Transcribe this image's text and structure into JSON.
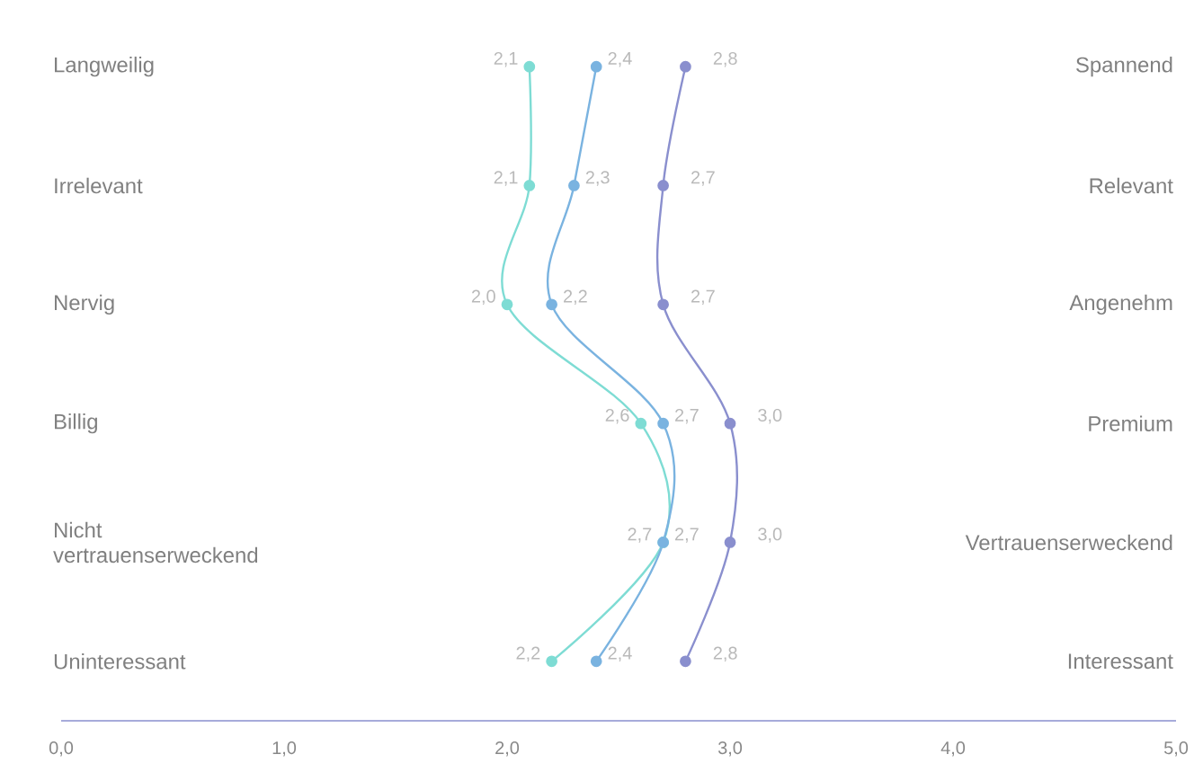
{
  "chart_data": {
    "type": "line",
    "orientation": "horizontal",
    "marker": "circle",
    "line_style": "solid",
    "categories": [
      "Langweilig",
      "Irrelevant",
      "Nervig",
      "Billig",
      "Nicht vertrauenserweckend",
      "Uninteressant"
    ],
    "y2_categories": [
      "Spannend",
      "Relevant",
      "Angenehm",
      "Premium",
      "Vertrauenserweckend",
      "Interessant"
    ],
    "series": [
      {
        "color": "#7edcd4",
        "values": [
          2.1,
          2.1,
          2.0,
          2.6,
          2.7,
          2.2
        ],
        "value_labels": [
          "2,1",
          "2,1",
          "2,0",
          "2,6",
          "2,7",
          "2,2"
        ]
      },
      {
        "color": "#7ab3e0",
        "values": [
          2.4,
          2.3,
          2.2,
          2.7,
          2.7,
          2.4
        ],
        "value_labels": [
          "2,4",
          "2,3",
          "2,2",
          "2,7",
          "2,7",
          "2,4"
        ]
      },
      {
        "color": "#8a8fce",
        "values": [
          2.8,
          2.7,
          2.7,
          3.0,
          3.0,
          2.8
        ],
        "value_labels": [
          "2,8",
          "2,7",
          "2,7",
          "3,0",
          "3,0",
          "2,8"
        ]
      }
    ],
    "xlim": [
      0,
      5
    ],
    "xticks": [
      {
        "value": 0,
        "label": "0,0"
      },
      {
        "value": 1,
        "label": "1,0"
      },
      {
        "value": 2,
        "label": "2,0"
      },
      {
        "value": 3,
        "label": "3,0"
      },
      {
        "value": 4,
        "label": "4,0"
      },
      {
        "value": 5,
        "label": "5,0"
      }
    ]
  }
}
